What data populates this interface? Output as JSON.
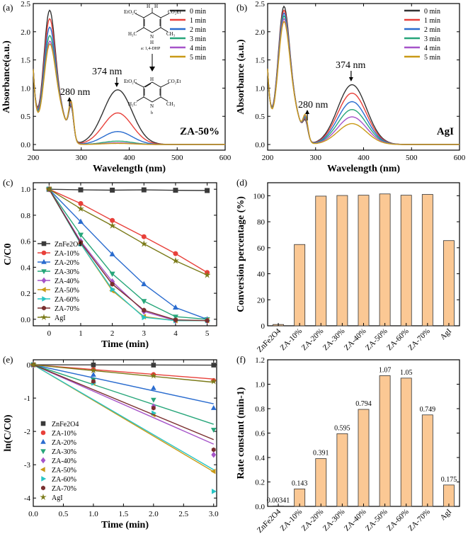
{
  "chart_data": [
    {
      "panel": "(a)",
      "type": "line",
      "xlabel": "Wavelength (nm)",
      "ylabel": "Absorbance(a.u.)",
      "xlim": [
        200,
        600
      ],
      "ylim": [
        -0.1,
        2.5
      ],
      "xticks": [
        "200",
        "300",
        "400",
        "500",
        "600"
      ],
      "yticks": [
        "0.0",
        "0.5",
        "1.0",
        "1.5",
        "2.0",
        "2.5"
      ],
      "annotations": [
        "374 nm",
        "280 nm",
        "ZA-50%"
      ],
      "inset": {
        "top_label": "a: 1,4-DHP",
        "bottom_label": "b",
        "substituents_top": [
          "EtO₂C",
          "CO₂Et",
          "H₃C",
          "CH₃",
          "H",
          "N",
          "H",
          "H"
        ],
        "substituents_bottom": [
          "EtO₂C",
          "CO₂Et",
          "H₃C",
          "CH₃",
          "N",
          "H"
        ]
      },
      "series": [
        {
          "name": "0 min",
          "color": "#333333",
          "peak": 0.97,
          "p280": 0.55,
          "p233": 2.2
        },
        {
          "name": "1 min",
          "color": "#e8403a",
          "peak": 0.56,
          "p280": 0.57,
          "p233": 2.05
        },
        {
          "name": "2 min",
          "color": "#2a6ccf",
          "peak": 0.23,
          "p280": 0.59,
          "p233": 1.9
        },
        {
          "name": "3 min",
          "color": "#27a67a",
          "peak": 0.06,
          "p280": 0.6,
          "p233": 1.75
        },
        {
          "name": "4 min",
          "color": "#a654c9",
          "peak": 0.03,
          "p280": 0.62,
          "p233": 1.65
        },
        {
          "name": "5 min",
          "color": "#c99a17",
          "peak": 0.02,
          "p280": 0.65,
          "p233": 1.6
        }
      ]
    },
    {
      "panel": "(b)",
      "type": "line",
      "xlabel": "Wavelength (nm)",
      "ylabel": "Absorbance (a.u.)",
      "xlim": [
        200,
        600
      ],
      "ylim": [
        -0.1,
        2.5
      ],
      "xticks": [
        "200",
        "300",
        "400",
        "500",
        "600"
      ],
      "yticks": [
        "0.0",
        "0.5",
        "1.0",
        "1.5",
        "2.0",
        "2.5"
      ],
      "annotations": [
        "374 nm",
        "280 nm",
        "AgI"
      ],
      "series": [
        {
          "name": "0 min",
          "color": "#333333",
          "peak": 1.06,
          "p280": 0.3,
          "p233": 2.27
        },
        {
          "name": "1 min",
          "color": "#e8403a",
          "peak": 0.91,
          "p280": 0.32,
          "p233": 2.2
        },
        {
          "name": "2 min",
          "color": "#2a6ccf",
          "peak": 0.76,
          "p280": 0.34,
          "p233": 2.15
        },
        {
          "name": "3 min",
          "color": "#27a67a",
          "peak": 0.62,
          "p280": 0.36,
          "p233": 2.1
        },
        {
          "name": "4 min",
          "color": "#a654c9",
          "peak": 0.49,
          "p280": 0.38,
          "p233": 2.05
        },
        {
          "name": "5 min",
          "color": "#c99a17",
          "peak": 0.37,
          "p280": 0.4,
          "p233": 2.0
        }
      ]
    },
    {
      "panel": "(c)",
      "type": "line",
      "xlabel": "Time (min)",
      "ylabel": "C/C0",
      "xlim": [
        -0.5,
        5.3
      ],
      "ylim": [
        -0.05,
        1.05
      ],
      "x": [
        0,
        1,
        2,
        3,
        4,
        5
      ],
      "xticks": [
        "0",
        "1",
        "2",
        "3",
        "4",
        "5"
      ],
      "yticks": [
        "0.0",
        "0.2",
        "0.4",
        "0.6",
        "0.8",
        "1.0"
      ],
      "series": [
        {
          "name": "ZnFe2O4",
          "color": "#3a3a3a",
          "marker": "square",
          "values": [
            1.0,
            0.995,
            0.993,
            0.995,
            0.992,
            0.99
          ]
        },
        {
          "name": "ZA-10%",
          "color": "#e8403a",
          "marker": "circle",
          "values": [
            1.0,
            0.89,
            0.76,
            0.635,
            0.505,
            0.36
          ]
        },
        {
          "name": "ZA-20%",
          "color": "#2a6ccf",
          "marker": "triangle-up",
          "values": [
            1.0,
            0.75,
            0.5,
            0.27,
            0.09,
            0.0
          ]
        },
        {
          "name": "ZA-30%",
          "color": "#27a67a",
          "marker": "triangle-down",
          "values": [
            1.0,
            0.65,
            0.35,
            0.14,
            0.02,
            0.0
          ]
        },
        {
          "name": "ZA-40%",
          "color": "#a654c9",
          "marker": "diamond",
          "values": [
            1.0,
            0.6,
            0.29,
            0.06,
            -0.01,
            -0.01
          ]
        },
        {
          "name": "ZA-50%",
          "color": "#c99a17",
          "marker": "triangle-left",
          "values": [
            1.0,
            0.58,
            0.22,
            0.02,
            -0.01,
            -0.01
          ]
        },
        {
          "name": "ZA-60%",
          "color": "#27c4c4",
          "marker": "triangle-right",
          "values": [
            1.0,
            0.58,
            0.23,
            0.015,
            -0.01,
            -0.01
          ]
        },
        {
          "name": "ZA-70%",
          "color": "#7a2f2f",
          "marker": "hexagon",
          "values": [
            1.0,
            0.59,
            0.27,
            0.07,
            -0.005,
            -0.01
          ]
        },
        {
          "name": "AgI",
          "color": "#7a7a18",
          "marker": "star",
          "values": [
            1.0,
            0.85,
            0.72,
            0.58,
            0.45,
            0.34
          ]
        }
      ]
    },
    {
      "panel": "(d)",
      "type": "bar",
      "ylabel": "Conversion percentage (%)",
      "ylim": [
        0,
        110
      ],
      "yticks": [
        "0",
        "20",
        "40",
        "60",
        "80",
        "100"
      ],
      "categories": [
        "ZnFe2O4",
        "ZA-10%",
        "ZA-20%",
        "ZA-30%",
        "ZA-40%",
        "ZA-50%",
        "ZA-60%",
        "ZA-70%",
        "AgI"
      ],
      "values": [
        1.0,
        62.5,
        99.7,
        100.2,
        100.4,
        101.4,
        100.4,
        101.0,
        65.5
      ],
      "bar_color": "#fbc894"
    },
    {
      "panel": "(e)",
      "type": "scatter",
      "xlabel": "Time (min)",
      "ylabel": "ln(C/C0)",
      "xlim": [
        0,
        3.05
      ],
      "ylim": [
        -4.25,
        0.15
      ],
      "x": [
        0,
        1.0,
        2.0,
        3.0
      ],
      "xticks": [
        "0.0",
        "0.5",
        "1.0",
        "1.5",
        "2.0",
        "2.5",
        "3.0"
      ],
      "yticks": [
        "0",
        "-1",
        "-2",
        "-3",
        "-4"
      ],
      "series": [
        {
          "name": "ZnFe2O4",
          "color": "#3a3a3a",
          "marker": "square",
          "values": [
            0,
            -0.005,
            -0.01,
            -0.01
          ],
          "slope": -0.00341
        },
        {
          "name": "ZA-10%",
          "color": "#e8403a",
          "marker": "circle",
          "values": [
            0,
            -0.14,
            -0.29,
            -0.47
          ],
          "slope": -0.143
        },
        {
          "name": "ZA-20%",
          "color": "#2a6ccf",
          "marker": "triangle-up",
          "values": [
            0,
            -0.3,
            -0.7,
            -1.3
          ],
          "slope": -0.391
        },
        {
          "name": "ZA-30%",
          "color": "#27a67a",
          "marker": "triangle-down",
          "values": [
            0,
            -0.45,
            -1.05,
            -1.95
          ],
          "slope": -0.595
        },
        {
          "name": "ZA-40%",
          "color": "#a654c9",
          "marker": "diamond",
          "values": [
            0,
            -0.52,
            -1.25,
            -2.7
          ],
          "slope": -0.794
        },
        {
          "name": "ZA-50%",
          "color": "#c99a17",
          "marker": "triangle-left",
          "values": [
            0,
            -0.55,
            -1.5,
            -3.2
          ],
          "slope": -1.07
        },
        {
          "name": "ZA-60%",
          "color": "#27c4c4",
          "marker": "triangle-right",
          "values": [
            0,
            -0.55,
            -1.45,
            -3.8
          ],
          "slope": -1.05
        },
        {
          "name": "ZA-70%",
          "color": "#7a2f2f",
          "marker": "hexagon",
          "values": [
            0,
            -0.5,
            -1.3,
            -2.55
          ],
          "slope": -0.749
        },
        {
          "name": "AgI",
          "color": "#7a7a18",
          "marker": "star",
          "values": [
            0,
            -0.17,
            -0.33,
            -0.5
          ],
          "slope": -0.175
        }
      ]
    },
    {
      "panel": "(f)",
      "type": "bar",
      "ylabel": "Rate constant (min-1)",
      "ylim": [
        0,
        1.2
      ],
      "yticks": [
        "0.0",
        "0.2",
        "0.4",
        "0.6",
        "0.8",
        "1.0",
        "1.2"
      ],
      "categories": [
        "ZnFe2O4",
        "ZA-10%",
        "ZA-20%",
        "ZA-30%",
        "ZA-40%",
        "ZA-50%",
        "ZA-60%",
        "ZA-70%",
        "AgI"
      ],
      "values": [
        0.00341,
        0.143,
        0.391,
        0.595,
        0.794,
        1.07,
        1.05,
        0.749,
        0.175
      ],
      "value_labels": [
        "0.00341",
        "0.143",
        "0.391",
        "0.595",
        "0.794",
        "1.07",
        "1.05",
        "0.749",
        "0.175"
      ],
      "bar_color": "#fbc894"
    }
  ]
}
